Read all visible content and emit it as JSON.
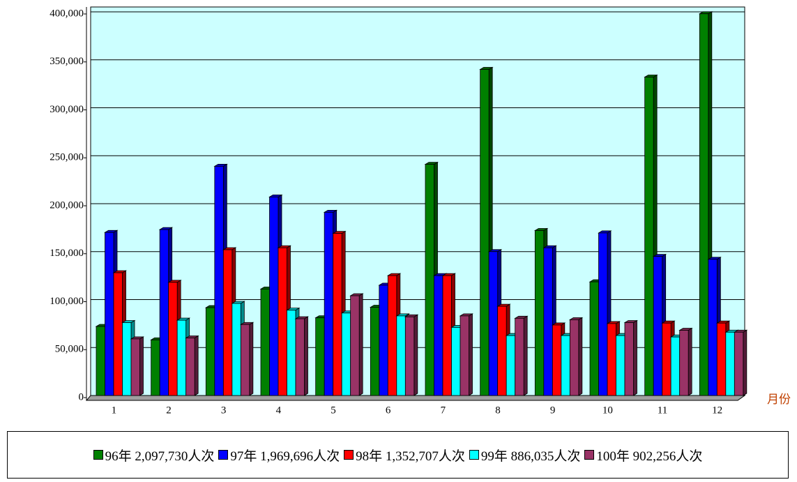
{
  "chart_data": {
    "type": "bar",
    "x_label": "月份",
    "categories": [
      "1",
      "2",
      "3",
      "4",
      "5",
      "6",
      "7",
      "8",
      "9",
      "10",
      "11",
      "12"
    ],
    "series": [
      {
        "name": "96年 2,097,730人次",
        "color": "#008000",
        "values": [
          72000,
          58000,
          91600,
          111000,
          81000,
          92000,
          241000,
          340000,
          172000,
          118500,
          332000,
          398000
        ]
      },
      {
        "name": "97年 1,969,696人次",
        "color": "#0000ff",
        "values": [
          170000,
          173000,
          239000,
          207000,
          191000,
          115000,
          125000,
          150000,
          154000,
          169500,
          145000,
          142000
        ]
      },
      {
        "name": "98年 1,352,707人次",
        "color": "#ff0000",
        "values": [
          128000,
          118000,
          152000,
          154000,
          169000,
          125000,
          125000,
          93000,
          73500,
          75000,
          75500,
          75500
        ]
      },
      {
        "name": "99年 886,035人次",
        "color": "#00ffff",
        "values": [
          76000,
          78500,
          96000,
          89000,
          86000,
          83000,
          71000,
          62500,
          62500,
          62500,
          61000,
          66000
        ]
      },
      {
        "name": "100年 902,256人次",
        "color": "#993366",
        "values": [
          59000,
          60000,
          74000,
          80000,
          104000,
          82000,
          83000,
          80500,
          79000,
          76000,
          68000,
          66000
        ]
      }
    ],
    "ylim": [
      0,
      400000
    ],
    "yticks": [
      0,
      {
        "value": 50000,
        "label": "50,000"
      },
      {
        "value": 100000,
        "label": "100,000"
      },
      {
        "value": 150000,
        "label": "150,000"
      },
      {
        "value": 200000,
        "label": "200,000"
      },
      {
        "value": 250000,
        "label": "250,000"
      },
      {
        "value": 300000,
        "label": "300,000"
      },
      {
        "value": 350000,
        "label": "350,000"
      },
      {
        "value": 400000,
        "label": "400,000"
      }
    ],
    "grid": true,
    "plot_background": "#ccffff"
  }
}
